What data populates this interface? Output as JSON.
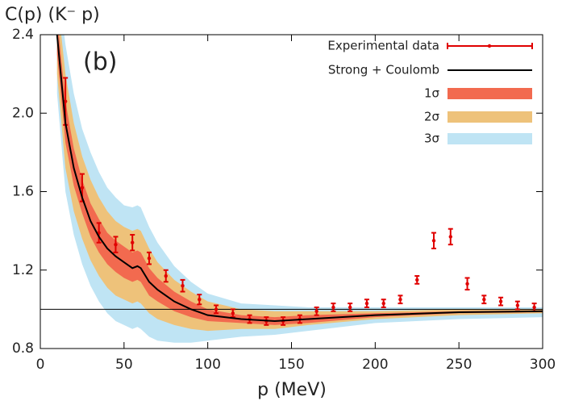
{
  "chart_data": {
    "type": "line",
    "y_label": "C(p) (K⁻ p)",
    "x_label": "p (MeV)",
    "annotation": "(b)",
    "xlim": [
      0,
      300
    ],
    "ylim": [
      0.8,
      2.4
    ],
    "xticks": [
      0,
      50,
      100,
      150,
      200,
      250,
      300
    ],
    "yticks": [
      0.8,
      1.2,
      1.6,
      {
        "value": 2,
        "label": "2.0"
      },
      2.4
    ],
    "hline": 1,
    "legend": "upper right",
    "series": [
      {
        "name": "Experimental data",
        "color": "#e00000",
        "kind": "errorbar",
        "x": [
          15,
          25,
          35,
          45,
          55,
          65,
          75,
          85,
          95,
          105,
          115,
          125,
          135,
          145,
          155,
          165,
          175,
          185,
          195,
          205,
          215,
          225,
          235,
          245,
          255,
          265,
          275,
          285,
          295
        ],
        "values": [
          2.06,
          1.62,
          1.39,
          1.33,
          1.34,
          1.26,
          1.17,
          1.12,
          1.05,
          1.0,
          0.98,
          0.95,
          0.94,
          0.94,
          0.95,
          0.99,
          1.01,
          1.01,
          1.03,
          1.03,
          1.05,
          1.15,
          1.35,
          1.37,
          1.13,
          1.05,
          1.04,
          1.02,
          1.01
        ],
        "errors": [
          0.12,
          0.07,
          0.05,
          0.04,
          0.04,
          0.03,
          0.03,
          0.03,
          0.025,
          0.02,
          0.02,
          0.02,
          0.02,
          0.02,
          0.02,
          0.02,
          0.02,
          0.02,
          0.02,
          0.02,
          0.02,
          0.02,
          0.04,
          0.04,
          0.03,
          0.02,
          0.02,
          0.02,
          0.02
        ]
      },
      {
        "name": "Strong + Coulomb",
        "color": "#000000",
        "kind": "line",
        "x": [
          10,
          15,
          20,
          25,
          30,
          35,
          40,
          45,
          50,
          55,
          58,
          60,
          65,
          70,
          80,
          90,
          100,
          120,
          140,
          160,
          200,
          250,
          300
        ],
        "values": [
          2.4,
          1.95,
          1.72,
          1.57,
          1.45,
          1.37,
          1.31,
          1.27,
          1.24,
          1.21,
          1.22,
          1.21,
          1.14,
          1.1,
          1.04,
          1.0,
          0.97,
          0.95,
          0.94,
          0.95,
          0.97,
          0.985,
          0.99
        ]
      },
      {
        "name": "1σ",
        "color": "#f26a4f",
        "kind": "band",
        "x": [
          10,
          15,
          20,
          25,
          30,
          35,
          40,
          45,
          50,
          55,
          58,
          60,
          65,
          70,
          80,
          90,
          100,
          120,
          140,
          160,
          200,
          250,
          300
        ],
        "upper": [
          2.5,
          2.06,
          1.82,
          1.66,
          1.54,
          1.46,
          1.39,
          1.35,
          1.32,
          1.29,
          1.3,
          1.29,
          1.21,
          1.16,
          1.09,
          1.04,
          1.0,
          0.97,
          0.96,
          0.97,
          0.98,
          0.99,
          0.995
        ],
        "lower": [
          2.3,
          1.85,
          1.63,
          1.49,
          1.37,
          1.29,
          1.23,
          1.19,
          1.16,
          1.14,
          1.15,
          1.14,
          1.07,
          1.04,
          0.99,
          0.96,
          0.94,
          0.93,
          0.92,
          0.93,
          0.96,
          0.98,
          0.985
        ]
      },
      {
        "name": "2σ",
        "color": "#eec27a",
        "kind": "band",
        "x": [
          10,
          15,
          20,
          25,
          30,
          35,
          40,
          45,
          50,
          55,
          58,
          60,
          65,
          70,
          80,
          90,
          100,
          120,
          140,
          160,
          200,
          250,
          300
        ],
        "upper": [
          2.6,
          2.2,
          1.95,
          1.78,
          1.66,
          1.57,
          1.5,
          1.45,
          1.42,
          1.4,
          1.41,
          1.4,
          1.31,
          1.24,
          1.15,
          1.09,
          1.04,
          1.0,
          0.99,
          0.99,
          0.99,
          1.0,
          1.0
        ],
        "lower": [
          2.2,
          1.72,
          1.5,
          1.36,
          1.25,
          1.17,
          1.11,
          1.07,
          1.05,
          1.03,
          1.04,
          1.03,
          0.98,
          0.95,
          0.92,
          0.9,
          0.89,
          0.9,
          0.9,
          0.92,
          0.95,
          0.97,
          0.98
        ]
      },
      {
        "name": "3σ",
        "color": "#bfe4f4",
        "kind": "band",
        "x": [
          10,
          15,
          20,
          25,
          30,
          35,
          40,
          45,
          50,
          55,
          58,
          60,
          65,
          70,
          80,
          90,
          100,
          120,
          140,
          160,
          200,
          250,
          300
        ],
        "upper": [
          2.7,
          2.35,
          2.1,
          1.92,
          1.8,
          1.7,
          1.62,
          1.57,
          1.53,
          1.52,
          1.53,
          1.52,
          1.42,
          1.34,
          1.22,
          1.14,
          1.08,
          1.03,
          1.02,
          1.01,
          1.01,
          1.01,
          1.01
        ],
        "lower": [
          2.1,
          1.6,
          1.38,
          1.23,
          1.12,
          1.04,
          0.98,
          0.94,
          0.92,
          0.9,
          0.91,
          0.9,
          0.86,
          0.84,
          0.83,
          0.83,
          0.84,
          0.86,
          0.87,
          0.89,
          0.93,
          0.95,
          0.96
        ]
      }
    ]
  }
}
